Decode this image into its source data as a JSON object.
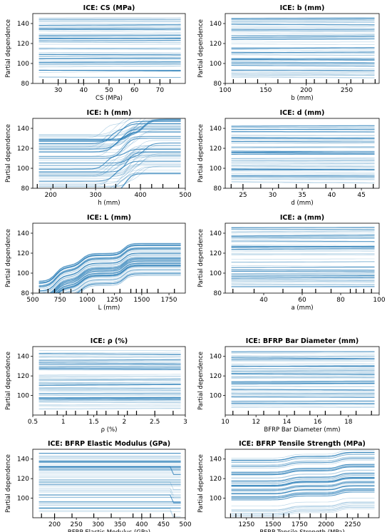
{
  "figure": {
    "ylabel": "Partial dependence",
    "color": "#1f77b4"
  },
  "chart_data": [
    {
      "type": "line",
      "title": "ICE: CS (MPa)",
      "xlabel": "CS (MPa)",
      "ylabel": "Partial dependence",
      "xlim": [
        20,
        80
      ],
      "ylim": [
        80,
        150
      ],
      "xticks": [
        30,
        40,
        50,
        60,
        70
      ],
      "yticks": [
        80,
        100,
        120,
        140
      ],
      "rug": [
        24,
        30,
        33,
        38,
        40,
        46,
        50,
        54,
        58,
        62,
        66,
        70,
        74
      ],
      "shape": "flat"
    },
    {
      "type": "line",
      "title": "ICE: b (mm)",
      "xlabel": "b (mm)",
      "ylabel": "Partial dependence",
      "xlim": [
        100,
        290
      ],
      "ylim": [
        80,
        150
      ],
      "xticks": [
        100,
        150,
        200,
        250
      ],
      "yticks": [
        80,
        100,
        120,
        140
      ],
      "rug": [
        110,
        125,
        140,
        165,
        180,
        200,
        210,
        225,
        240,
        255,
        270,
        285
      ],
      "shape": "flat"
    },
    {
      "type": "line",
      "title": "ICE: h (mm)",
      "xlabel": "h (mm)",
      "ylabel": "Partial dependence",
      "xlim": [
        160,
        500
      ],
      "ylim": [
        80,
        150
      ],
      "xticks": [
        200,
        300,
        400,
        500
      ],
      "yticks": [
        80,
        100,
        120,
        140
      ],
      "rug": [
        170,
        205,
        235,
        280,
        300,
        320,
        345,
        375,
        400,
        425,
        450,
        485
      ],
      "shape": "step_h"
    },
    {
      "type": "line",
      "title": "ICE: d (mm)",
      "xlabel": "d (mm)",
      "ylabel": "Partial dependence",
      "xlim": [
        22,
        48
      ],
      "ylim": [
        80,
        150
      ],
      "xticks": [
        25,
        30,
        35,
        40,
        45
      ],
      "yticks": [
        80,
        100,
        120,
        140
      ],
      "rug": [
        23,
        25,
        28,
        31,
        34,
        36,
        39,
        42,
        44,
        47
      ],
      "shape": "flat"
    },
    {
      "type": "line",
      "title": "ICE: L (mm)",
      "xlabel": "L (mm)",
      "ylabel": "Partial dependence",
      "xlim": [
        500,
        1900
      ],
      "ylim": [
        80,
        150
      ],
      "xticks": [
        500,
        750,
        1000,
        1250,
        1500,
        1750
      ],
      "yticks": [
        80,
        100,
        120,
        140
      ],
      "rug": [
        560,
        640,
        700,
        780,
        850,
        950,
        1050,
        1150,
        1300,
        1400,
        1450,
        1500,
        1550,
        1650,
        1800
      ],
      "shape": "step_L"
    },
    {
      "type": "line",
      "title": "ICE: a (mm)",
      "xlabel": "a (mm)",
      "ylabel": "Partial dependence",
      "xlim": [
        20,
        100
      ],
      "ylim": [
        80,
        150
      ],
      "xticks": [
        40,
        60,
        80,
        100
      ],
      "yticks": [
        80,
        100,
        120,
        140
      ],
      "rug": [
        24,
        35,
        50,
        60,
        67,
        75,
        85,
        88,
        92,
        96
      ],
      "shape": "flat"
    },
    {
      "type": "line",
      "title": "ICE: ρ (%)",
      "xlabel": "ρ (%)",
      "ylabel": "Partial dependence",
      "xlim": [
        0.5,
        3.0
      ],
      "ylim": [
        80,
        150
      ],
      "xticks": [
        0.5,
        1.0,
        1.5,
        2.0,
        2.5,
        3.0
      ],
      "yticks": [
        100,
        120,
        140
      ],
      "rug": [
        0.7,
        0.9,
        1.05,
        1.2,
        1.4,
        1.55,
        1.7,
        1.9,
        2.05,
        2.2,
        2.5,
        2.8
      ],
      "shape": "flat"
    },
    {
      "type": "line",
      "title": "ICE: BFRP Bar Diameter (mm)",
      "xlabel": "BFRP Bar Diameter (mm)",
      "ylabel": "Partial dependence",
      "xlim": [
        10,
        20
      ],
      "ylim": [
        80,
        150
      ],
      "xticks": [
        10,
        12,
        14,
        16,
        18
      ],
      "yticks": [
        100,
        120,
        140
      ],
      "rug": [
        10.5,
        11.5,
        12.5,
        13.5,
        14.5,
        15.5,
        16.5,
        17.5,
        18.5,
        19.5
      ],
      "shape": "flat"
    },
    {
      "type": "line",
      "title": "ICE: BFRP Elastic Modulus (GPa)",
      "xlabel": "BFRP Elastic Modulus (GPa)",
      "ylabel": "Partial dependence",
      "xlim": [
        150,
        500
      ],
      "ylim": [
        80,
        150
      ],
      "xticks": [
        200,
        250,
        300,
        350,
        400,
        450,
        500
      ],
      "yticks": [
        100,
        120,
        140
      ],
      "rug": [
        170,
        200,
        240,
        290,
        330,
        380,
        400,
        420,
        450,
        475
      ],
      "shape": "flat_end"
    },
    {
      "type": "line",
      "title": "ICE: BFRP Tensile Strength (MPa)",
      "xlabel": "BFRP Tensile Strength (MPa)",
      "ylabel": "Partial dependence",
      "xlim": [
        1050,
        2500
      ],
      "ylim": [
        80,
        150
      ],
      "xticks": [
        1250,
        1500,
        1750,
        2000,
        2250
      ],
      "yticks": [
        100,
        120,
        140
      ],
      "rug": [
        1100,
        1150,
        1200,
        1300,
        1400,
        1500,
        1600,
        1650,
        1750,
        1850,
        1950,
        2000,
        2100,
        2200,
        2300,
        2400
      ],
      "shape": "step_T"
    }
  ]
}
